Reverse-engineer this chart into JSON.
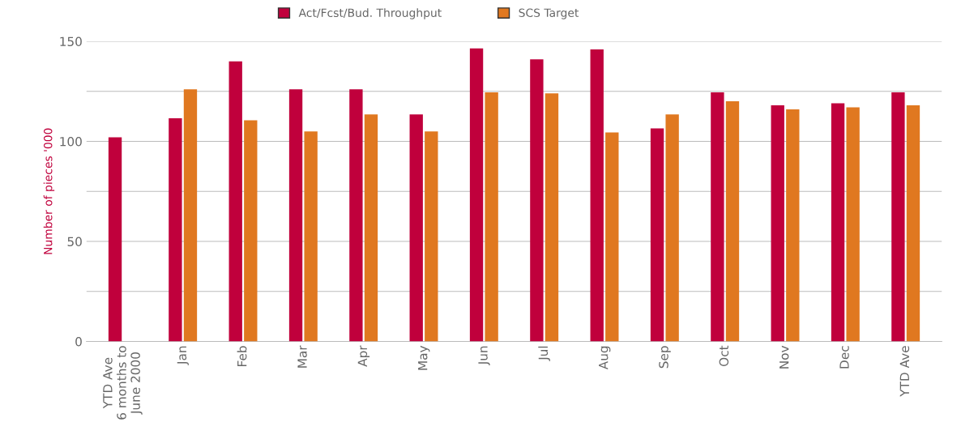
{
  "chart_data": {
    "type": "bar",
    "ylabel": "Number of pieces '000",
    "categories": [
      "YTD Ave\n6 months to\nJune 2000",
      "Jan",
      "Feb",
      "Mar",
      "Apr",
      "May",
      "Jun",
      "Jul",
      "Aug",
      "Sep",
      "Oct",
      "Nov",
      "Dec",
      "YTD Ave"
    ],
    "series": [
      {
        "name": "Act/Fcst/Bud. Throughput",
        "color": "#c0003c",
        "values": [
          102,
          111.5,
          140,
          126,
          126,
          113.5,
          146.5,
          141,
          146,
          106.5,
          124.5,
          118,
          119,
          124.5
        ]
      },
      {
        "name": "SCS Target",
        "color": "#e07820",
        "values": [
          null,
          126,
          110.5,
          105,
          113.5,
          105,
          124.5,
          124,
          104.5,
          113.5,
          120,
          116,
          117,
          118
        ]
      }
    ],
    "ylim": [
      0,
      150
    ],
    "yticks": [
      0,
      {
        "value": 25,
        "label": null
      },
      50,
      {
        "value": 75,
        "label": null
      },
      100,
      {
        "value": 125,
        "label": null
      },
      150
    ],
    "grid": "y",
    "legend": "top"
  }
}
